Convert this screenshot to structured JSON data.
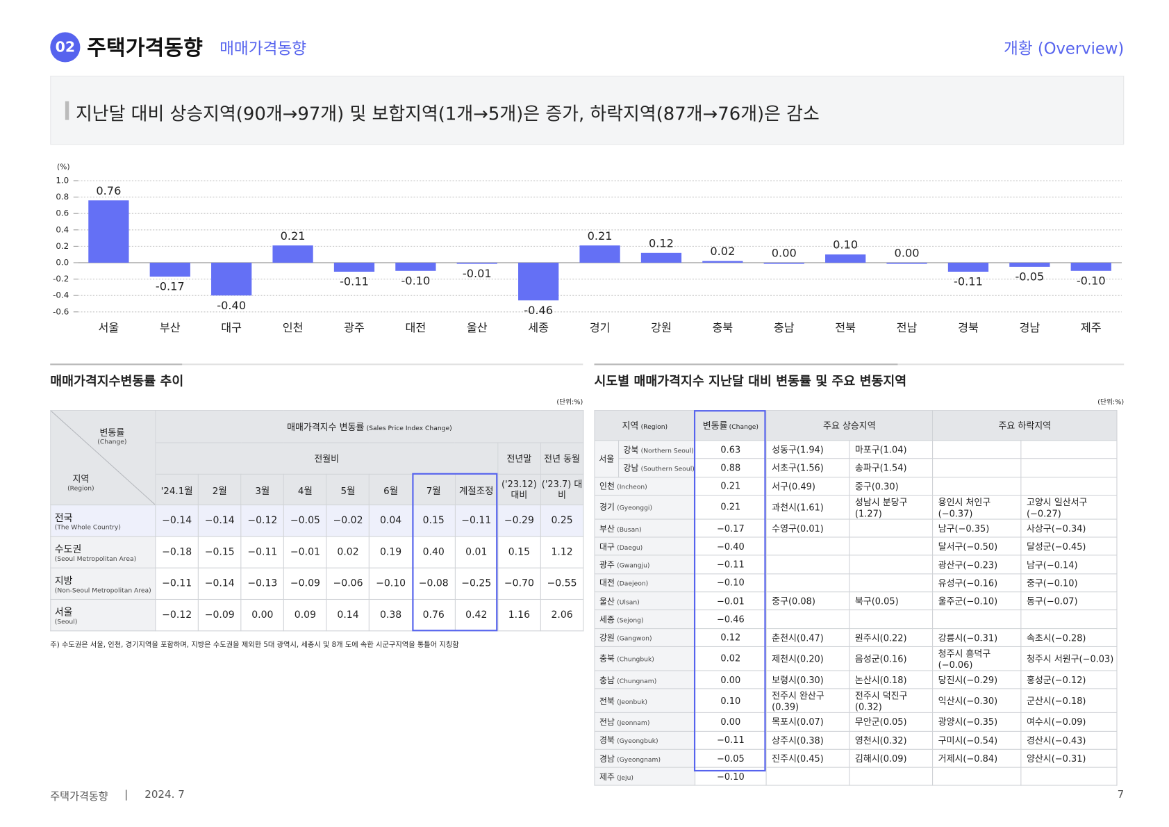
{
  "header": {
    "section_number": "02",
    "title": "주택가격동향",
    "subtitle": "매매가격동향",
    "right_label": "개황 (Overview)"
  },
  "headline": "지난달 대비 상승지역(90개→97개) 및 보합지역(1개→5개)은 증가, 하락지역(87개→76개)은 감소",
  "chart_data": {
    "type": "bar",
    "y_unit": "(%)",
    "categories": [
      "서울",
      "부산",
      "대구",
      "인천",
      "광주",
      "대전",
      "울산",
      "세종",
      "경기",
      "강원",
      "충북",
      "충남",
      "전북",
      "전남",
      "경북",
      "경남",
      "제주"
    ],
    "values": [
      0.76,
      -0.17,
      -0.4,
      0.21,
      -0.11,
      -0.1,
      -0.01,
      -0.46,
      0.21,
      0.12,
      0.02,
      0,
      0.1,
      0,
      -0.11,
      -0.05,
      -0.1
    ],
    "value_labels": [
      "0.76",
      "-0.17",
      "-0.40",
      "0.21",
      "-0.11",
      "-0.10",
      "-0.01",
      "-0.46",
      "0.21",
      "0.12",
      "0.02",
      "0.00",
      "0.10",
      "0.00",
      "-0.11",
      "-0.05",
      "-0.10"
    ],
    "color": "#6470f5",
    "ylim": [
      -0.6,
      1.0
    ],
    "yticks": [
      {
        "value": 1,
        "label": "1.0"
      },
      0.8,
      0.6,
      0.4,
      0.2,
      {
        "value": 0,
        "label": "0.0"
      },
      -0.2,
      -0.4,
      -0.6
    ],
    "grid": true
  },
  "left_table": {
    "title": "매매가격지수변동률 추이",
    "unit": "(단위:%)",
    "corner_top": "변동률",
    "corner_top_en": "(Change)",
    "corner_bottom": "지역",
    "corner_bottom_en": "(Region)",
    "group_header": "매매가격지수 변동률",
    "group_header_en": "(Sales Price Index Change)",
    "mom_header": "전월비",
    "prev_year_end": "전년말",
    "prev_year_end_sub": "('23.12) 대비",
    "same_month": "전년 동월",
    "same_month_sub": "('23.7) 대비",
    "months": [
      "'24.1월",
      "2월",
      "3월",
      "4월",
      "5월",
      "6월",
      "7월",
      "계절조정"
    ],
    "rows": [
      {
        "region": "전국",
        "region_en": "(The Whole Country)",
        "values": [
          "−0.14",
          "−0.14",
          "−0.12",
          "−0.05",
          "−0.02",
          "0.04",
          "0.15",
          "−0.11",
          "−0.29",
          "0.25"
        ]
      },
      {
        "region": "수도권",
        "region_en": "(Seoul Metropolitan Area)",
        "values": [
          "−0.18",
          "−0.15",
          "−0.11",
          "−0.01",
          "0.02",
          "0.19",
          "0.40",
          "0.01",
          "0.15",
          "1.12"
        ]
      },
      {
        "region": "지방",
        "region_en": "(Non-Seoul Metropolitan Area)",
        "values": [
          "−0.11",
          "−0.14",
          "−0.13",
          "−0.09",
          "−0.06",
          "−0.10",
          "−0.08",
          "−0.25",
          "−0.70",
          "−0.55"
        ]
      },
      {
        "region": "서울",
        "region_en": "(Seoul)",
        "values": [
          "−0.12",
          "−0.09",
          "0.00",
          "0.09",
          "0.14",
          "0.38",
          "0.76",
          "0.42",
          "1.16",
          "2.06"
        ]
      }
    ],
    "footnote": "주) 수도권은 서울, 인천, 경기지역을 포함하며, 지방은 수도권을 제외한 5대 광역시, 세종시 및 8개 도에 속한 시군구지역을 통틀어 지칭함"
  },
  "right_table": {
    "title": "시도별 매매가격지수 지난달 대비 변동률 및 주요 변동지역",
    "unit": "(단위:%)",
    "headers": {
      "region": "지역",
      "region_en": "(Region)",
      "change": "변동률",
      "change_en": "(Change)",
      "up": "주요 상승지역",
      "down": "주요 하락지역"
    },
    "seoul_group": "서울",
    "rows": [
      {
        "region": "강북",
        "region_en": "(Northern Seoul)",
        "change": "0.63",
        "areas": [
          "성동구(1.94)",
          "마포구(1.04)",
          null,
          null
        ]
      },
      {
        "region": "강남",
        "region_en": "(Southern Seoul)",
        "change": "0.88",
        "areas": [
          "서초구(1.56)",
          "송파구(1.54)",
          null,
          null
        ]
      },
      {
        "region": "인천",
        "region_en": "(Incheon)",
        "change": "0.21",
        "areas": [
          "서구(0.49)",
          "중구(0.30)",
          null,
          null
        ]
      },
      {
        "region": "경기",
        "region_en": "(Gyeonggi)",
        "change": "0.21",
        "areas": [
          "과천시(1.61)",
          "성남시 분당구(1.27)",
          "용인시 처인구(−0.37)",
          "고양시 일산서구(−0.27)"
        ]
      },
      {
        "region": "부산",
        "region_en": "(Busan)",
        "change": "−0.17",
        "areas": [
          "수영구(0.01)",
          null,
          "남구(−0.35)",
          "사상구(−0.34)"
        ]
      },
      {
        "region": "대구",
        "region_en": "(Daegu)",
        "change": "−0.40",
        "areas": [
          null,
          null,
          "달서구(−0.50)",
          "달성군(−0.45)"
        ]
      },
      {
        "region": "광주",
        "region_en": "(Gwangju)",
        "change": "−0.11",
        "areas": [
          null,
          null,
          "광산구(−0.23)",
          "남구(−0.14)"
        ]
      },
      {
        "region": "대전",
        "region_en": "(Daejeon)",
        "change": "−0.10",
        "areas": [
          null,
          null,
          "유성구(−0.16)",
          "중구(−0.10)"
        ]
      },
      {
        "region": "울산",
        "region_en": "(Ulsan)",
        "change": "−0.01",
        "areas": [
          "중구(0.08)",
          "북구(0.05)",
          "울주군(−0.10)",
          "동구(−0.07)"
        ]
      },
      {
        "region": "세종",
        "region_en": "(Sejong)",
        "change": "−0.46",
        "areas": [
          null,
          null,
          null,
          null
        ]
      },
      {
        "region": "강원",
        "region_en": "(Gangwon)",
        "change": "0.12",
        "areas": [
          "춘천시(0.47)",
          "원주시(0.22)",
          "강릉시(−0.31)",
          "속초시(−0.28)"
        ]
      },
      {
        "region": "충북",
        "region_en": "(Chungbuk)",
        "change": "0.02",
        "areas": [
          "제천시(0.20)",
          "음성군(0.16)",
          "청주시 흥덕구(−0.06)",
          "청주시 서원구(−0.03)"
        ]
      },
      {
        "region": "충남",
        "region_en": "(Chungnam)",
        "change": "0.00",
        "areas": [
          "보령시(0.30)",
          "논산시(0.18)",
          "당진시(−0.29)",
          "홍성군(−0.12)"
        ]
      },
      {
        "region": "전북",
        "region_en": "(Jeonbuk)",
        "change": "0.10",
        "areas": [
          "전주시 완산구(0.39)",
          "전주시 덕진구(0.32)",
          "익산시(−0.30)",
          "군산시(−0.18)"
        ]
      },
      {
        "region": "전남",
        "region_en": "(Jeonnam)",
        "change": "0.00",
        "areas": [
          "목포시(0.07)",
          "무안군(0.05)",
          "광양시(−0.35)",
          "여수시(−0.09)"
        ]
      },
      {
        "region": "경북",
        "region_en": "(Gyeongbuk)",
        "change": "−0.11",
        "areas": [
          "상주시(0.38)",
          "영천시(0.32)",
          "구미시(−0.54)",
          "경산시(−0.43)"
        ]
      },
      {
        "region": "경남",
        "region_en": "(Gyeongnam)",
        "change": "−0.05",
        "areas": [
          "진주시(0.45)",
          "김해시(0.09)",
          "거제시(−0.84)",
          "양산시(−0.31)"
        ]
      },
      {
        "region": "제주",
        "region_en": "(Jeju)",
        "change": "−0.10",
        "areas": [
          null,
          null,
          null,
          null
        ]
      }
    ]
  },
  "footer": {
    "doc": "주택가격동향",
    "separator": "|",
    "date": "2024. 7",
    "page": "7"
  }
}
